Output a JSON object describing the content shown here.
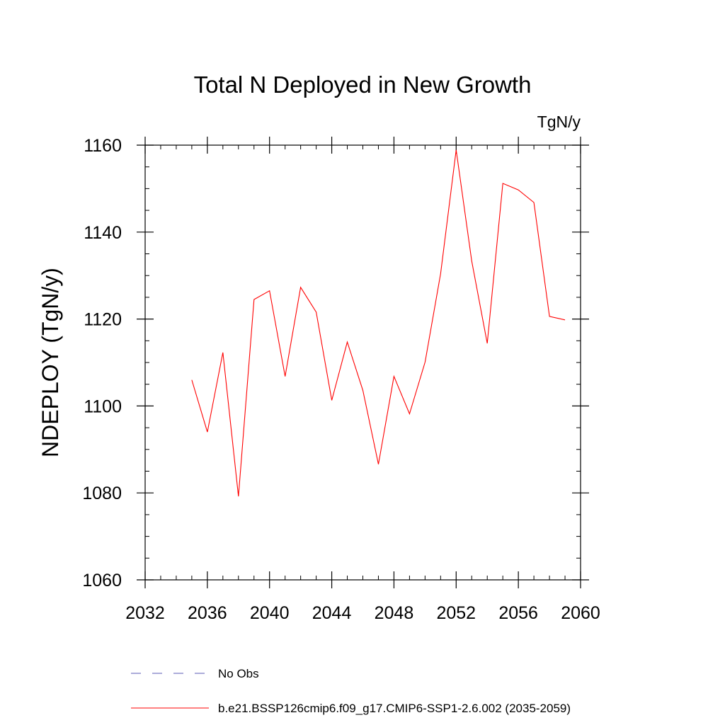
{
  "chart_data": {
    "type": "line",
    "title": "Total N Deployed in New Growth",
    "units_label": "TgN/y",
    "ylabel": "NDEPLOY  (TgN/y)",
    "xlabel": "",
    "xlim": [
      2032,
      2060
    ],
    "ylim": [
      1060,
      1160
    ],
    "x_ticks": [
      2032,
      2036,
      2040,
      2044,
      2048,
      2052,
      2056,
      2060
    ],
    "y_ticks": [
      1060,
      1080,
      1100,
      1120,
      1140,
      1160
    ],
    "grid": false,
    "legend_position": "bottom",
    "series": [
      {
        "name": "b.e21.BSSP126cmip6.f09_g17.CMIP6-SSP1-2.6.002 (2035-2059)",
        "color": "#ff0000",
        "style": "solid",
        "x": [
          2035,
          2036,
          2037,
          2038,
          2039,
          2040,
          2041,
          2042,
          2043,
          2044,
          2045,
          2046,
          2047,
          2048,
          2049,
          2050,
          2051,
          2052,
          2053,
          2054,
          2055,
          2056,
          2057,
          2058,
          2059
        ],
        "values": [
          1106,
          1094,
          1112.3,
          1079.2,
          1124.5,
          1126.5,
          1106.8,
          1127.3,
          1121.6,
          1101.3,
          1114.7,
          1103.6,
          1086.6,
          1106.8,
          1098.2,
          1110.1,
          1130.4,
          1158.9,
          1133.3,
          1114.4,
          1151.2,
          1149.7,
          1146.8,
          1120.6,
          1119.8
        ]
      }
    ],
    "legend_entries": [
      {
        "label": "No Obs",
        "color": "#5a5ab4",
        "style": "dashed"
      },
      {
        "label": "b.e21.BSSP126cmip6.f09_g17.CMIP6-SSP1-2.6.002 (2035-2059)",
        "color": "#ff0000",
        "style": "solid"
      }
    ]
  }
}
